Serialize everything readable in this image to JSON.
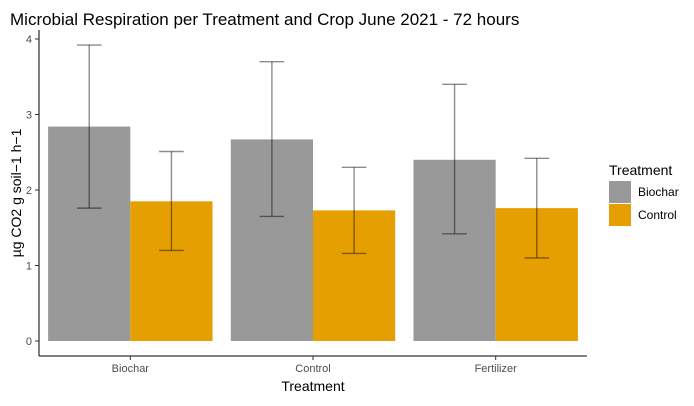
{
  "chart_data": {
    "type": "bar",
    "title": "Microbial Respiration per Treatment and Crop June 2021 - 72 hours",
    "xlabel": "Treatment",
    "ylabel": "µg CO2 g soil−1 h−1",
    "categories": [
      "Biochar",
      "Control",
      "Fertilizer"
    ],
    "ylim": [
      0,
      4
    ],
    "yticks": [
      0,
      1,
      2,
      3,
      4
    ],
    "grid": false,
    "series": [
      {
        "name": "Biochar",
        "color": "#999999",
        "values": [
          2.84,
          2.67,
          2.4
        ],
        "error_low": [
          1.76,
          1.65,
          1.42
        ],
        "error_high": [
          3.92,
          3.7,
          3.4
        ]
      },
      {
        "name": "Control",
        "color": "#E69F00",
        "values": [
          1.85,
          1.73,
          1.76
        ],
        "error_low": [
          1.2,
          1.16,
          1.1
        ],
        "error_high": [
          2.51,
          2.3,
          2.42
        ]
      }
    ],
    "legend": {
      "title": "Treatment",
      "position": "right"
    }
  }
}
